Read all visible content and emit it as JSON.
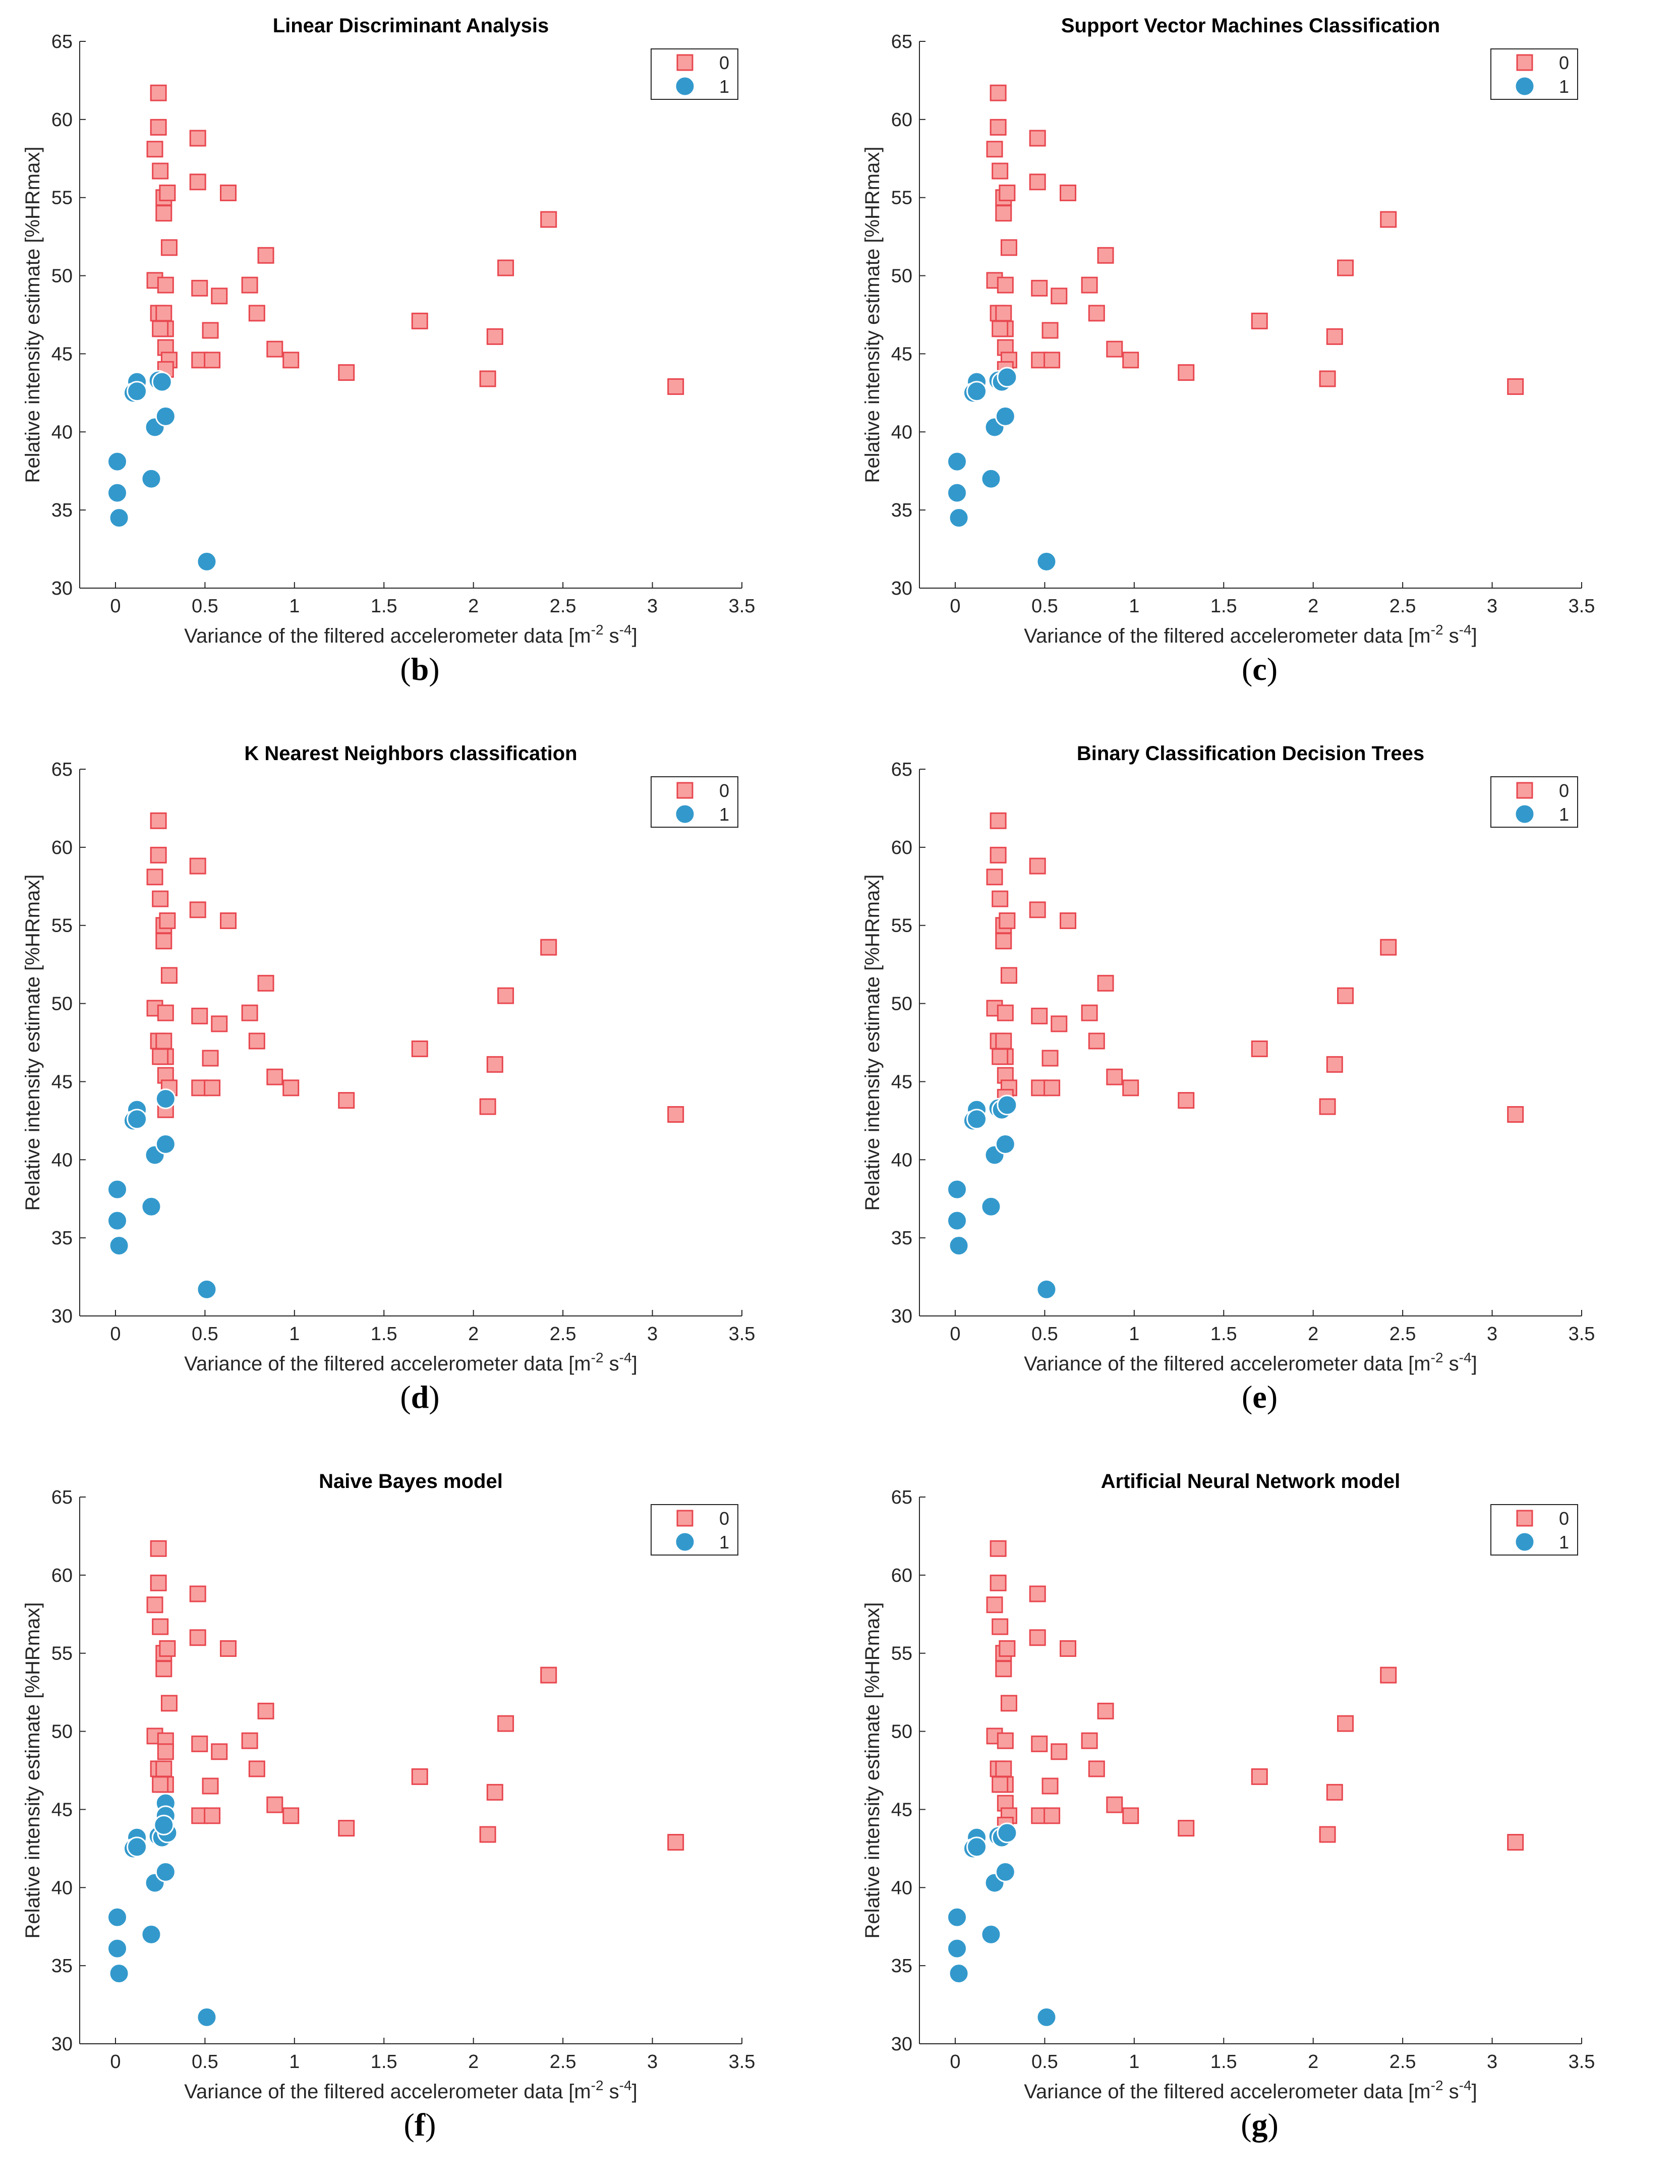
{
  "figure": {
    "panels": [
      {
        "caption_letter": "b"
      },
      {
        "caption_letter": "c"
      },
      {
        "caption_letter": "d"
      },
      {
        "caption_letter": "e"
      },
      {
        "caption_letter": "f"
      },
      {
        "caption_letter": "g"
      }
    ]
  },
  "colors": {
    "class0_fill": "#F8A0A0",
    "class0_stroke": "#E8474F",
    "class1_fill": "#3399CC",
    "class1_stroke": "#FFFFFF",
    "axis": "#262626"
  },
  "chart_data": [
    {
      "type": "scatter",
      "title": "Linear Discriminant Analysis",
      "xlabel": "Variance of the filtered accelerometer data [m",
      "xlabel_sup1": "-2",
      "xlabel_mid": " s",
      "xlabel_sup2": "-4",
      "xlabel_end": "]",
      "ylabel": "Relative intensity estimate [%HRmax]",
      "xlim": [
        -0.2,
        3.5
      ],
      "ylim": [
        30,
        65
      ],
      "xticks": [
        "0",
        "0.5",
        "1",
        "1.5",
        "2",
        "2.5",
        "3",
        "3.5"
      ],
      "yticks": [
        "30",
        "35",
        "40",
        "45",
        "50",
        "55",
        "60",
        "65"
      ],
      "legend": [
        "0",
        "1"
      ],
      "series": [
        {
          "name": "0",
          "marker": "square",
          "x": [
            0.24,
            0.24,
            0.22,
            0.25,
            0.27,
            0.29,
            0.27,
            0.3,
            0.22,
            0.28,
            0.24,
            0.27,
            0.27,
            0.28,
            0.25,
            0.28,
            0.3,
            0.28,
            0.46,
            0.46,
            0.63,
            0.47,
            0.58,
            0.53,
            0.47,
            0.54,
            0.84,
            0.75,
            0.79,
            0.89,
            0.98,
            1.29,
            1.7,
            2.08,
            2.12,
            2.18,
            2.42,
            3.13
          ],
          "y": [
            61.7,
            59.5,
            58.1,
            56.7,
            55.0,
            55.3,
            54.0,
            51.8,
            49.7,
            49.4,
            47.6,
            47.6,
            46.6,
            46.6,
            46.6,
            45.4,
            44.6,
            44.0,
            58.8,
            56.0,
            55.3,
            49.2,
            48.7,
            46.5,
            44.6,
            44.6,
            51.3,
            49.4,
            47.6,
            45.3,
            44.6,
            43.8,
            47.1,
            43.4,
            46.1,
            50.5,
            53.6,
            42.9
          ]
        },
        {
          "name": "1",
          "marker": "circle",
          "x": [
            0.12,
            0.1,
            0.12,
            0.24,
            0.22,
            0.26,
            0.28,
            0.01,
            0.01,
            0.02,
            0.2,
            0.51
          ],
          "y": [
            43.2,
            42.5,
            42.6,
            43.3,
            40.3,
            43.2,
            41.0,
            38.1,
            36.1,
            34.5,
            37.0,
            31.7
          ]
        }
      ]
    },
    {
      "type": "scatter",
      "title": "Support Vector Machines Classification",
      "xlabel": "Variance of the filtered accelerometer data [m",
      "xlabel_sup1": "-2",
      "xlabel_mid": " s",
      "xlabel_sup2": "-4",
      "xlabel_end": "]",
      "ylabel": "Relative intensity estimate [%HRmax]",
      "xlim": [
        -0.2,
        3.5
      ],
      "ylim": [
        30,
        65
      ],
      "xticks": [
        "0",
        "0.5",
        "1",
        "1.5",
        "2",
        "2.5",
        "3",
        "3.5"
      ],
      "yticks": [
        "30",
        "35",
        "40",
        "45",
        "50",
        "55",
        "60",
        "65"
      ],
      "legend": [
        "0",
        "1"
      ],
      "series": [
        {
          "name": "0",
          "marker": "square",
          "x": [
            0.24,
            0.24,
            0.22,
            0.25,
            0.27,
            0.29,
            0.27,
            0.3,
            0.22,
            0.28,
            0.24,
            0.27,
            0.27,
            0.28,
            0.25,
            0.28,
            0.3,
            0.28,
            0.46,
            0.46,
            0.63,
            0.47,
            0.58,
            0.53,
            0.47,
            0.54,
            0.84,
            0.75,
            0.79,
            0.89,
            0.98,
            1.29,
            1.7,
            2.08,
            2.12,
            2.18,
            2.42,
            3.13
          ],
          "y": [
            61.7,
            59.5,
            58.1,
            56.7,
            55.0,
            55.3,
            54.0,
            51.8,
            49.7,
            49.4,
            47.6,
            47.6,
            46.6,
            46.6,
            46.6,
            45.4,
            44.6,
            44.0,
            58.8,
            56.0,
            55.3,
            49.2,
            48.7,
            46.5,
            44.6,
            44.6,
            51.3,
            49.4,
            47.6,
            45.3,
            44.6,
            43.8,
            47.1,
            43.4,
            46.1,
            50.5,
            53.6,
            42.9
          ]
        },
        {
          "name": "1",
          "marker": "circle",
          "x": [
            0.12,
            0.1,
            0.12,
            0.24,
            0.22,
            0.26,
            0.28,
            0.01,
            0.01,
            0.02,
            0.2,
            0.51,
            0.29
          ],
          "y": [
            43.2,
            42.5,
            42.6,
            43.3,
            40.3,
            43.2,
            41.0,
            38.1,
            36.1,
            34.5,
            37.0,
            31.7,
            43.5
          ]
        }
      ]
    },
    {
      "type": "scatter",
      "title": "K Nearest Neighbors classification",
      "xlabel": "Variance of the filtered accelerometer data [m",
      "xlabel_sup1": "-2",
      "xlabel_mid": " s",
      "xlabel_sup2": "-4",
      "xlabel_end": "]",
      "ylabel": "Relative intensity estimate [%HRmax]",
      "xlim": [
        -0.2,
        3.5
      ],
      "ylim": [
        30,
        65
      ],
      "xticks": [
        "0",
        "0.5",
        "1",
        "1.5",
        "2",
        "2.5",
        "3",
        "3.5"
      ],
      "yticks": [
        "30",
        "35",
        "40",
        "45",
        "50",
        "55",
        "60",
        "65"
      ],
      "legend": [
        "0",
        "1"
      ],
      "series": [
        {
          "name": "0",
          "marker": "square",
          "x": [
            0.24,
            0.24,
            0.22,
            0.25,
            0.27,
            0.29,
            0.27,
            0.3,
            0.22,
            0.28,
            0.24,
            0.27,
            0.27,
            0.28,
            0.25,
            0.28,
            0.3,
            0.28,
            0.46,
            0.46,
            0.63,
            0.47,
            0.58,
            0.53,
            0.47,
            0.54,
            0.84,
            0.75,
            0.79,
            0.89,
            0.98,
            1.29,
            1.7,
            2.08,
            2.12,
            2.18,
            2.42,
            3.13
          ],
          "y": [
            61.7,
            59.5,
            58.1,
            56.7,
            55.0,
            55.3,
            54.0,
            51.8,
            49.7,
            49.4,
            47.6,
            47.6,
            46.6,
            46.6,
            46.6,
            45.4,
            44.6,
            43.2,
            58.8,
            56.0,
            55.3,
            49.2,
            48.7,
            46.5,
            44.6,
            44.6,
            51.3,
            49.4,
            47.6,
            45.3,
            44.6,
            43.8,
            47.1,
            43.4,
            46.1,
            50.5,
            53.6,
            42.9
          ]
        },
        {
          "name": "1",
          "marker": "circle",
          "x": [
            0.12,
            0.1,
            0.12,
            0.22,
            0.28,
            0.28,
            0.01,
            0.01,
            0.02,
            0.2,
            0.51
          ],
          "y": [
            43.2,
            42.5,
            42.6,
            40.3,
            43.9,
            41.0,
            38.1,
            36.1,
            34.5,
            37.0,
            31.7
          ]
        }
      ]
    },
    {
      "type": "scatter",
      "title": "Binary Classification Decision Trees",
      "xlabel": "Variance of the filtered accelerometer data [m",
      "xlabel_sup1": "-2",
      "xlabel_mid": " s",
      "xlabel_sup2": "-4",
      "xlabel_end": "]",
      "ylabel": "Relative intensity estimate [%HRmax]",
      "xlim": [
        -0.2,
        3.5
      ],
      "ylim": [
        30,
        65
      ],
      "xticks": [
        "0",
        "0.5",
        "1",
        "1.5",
        "2",
        "2.5",
        "3",
        "3.5"
      ],
      "yticks": [
        "30",
        "35",
        "40",
        "45",
        "50",
        "55",
        "60",
        "65"
      ],
      "legend": [
        "0",
        "1"
      ],
      "series": [
        {
          "name": "0",
          "marker": "square",
          "x": [
            0.24,
            0.24,
            0.22,
            0.25,
            0.27,
            0.29,
            0.27,
            0.3,
            0.22,
            0.28,
            0.24,
            0.27,
            0.27,
            0.28,
            0.25,
            0.28,
            0.3,
            0.28,
            0.46,
            0.46,
            0.63,
            0.47,
            0.58,
            0.53,
            0.47,
            0.54,
            0.84,
            0.75,
            0.79,
            0.89,
            0.98,
            1.29,
            1.7,
            2.08,
            2.12,
            2.18,
            2.42,
            3.13
          ],
          "y": [
            61.7,
            59.5,
            58.1,
            56.7,
            55.0,
            55.3,
            54.0,
            51.8,
            49.7,
            49.4,
            47.6,
            47.6,
            46.6,
            46.6,
            46.6,
            45.4,
            44.6,
            44.0,
            58.8,
            56.0,
            55.3,
            49.2,
            48.7,
            46.5,
            44.6,
            44.6,
            51.3,
            49.4,
            47.6,
            45.3,
            44.6,
            43.8,
            47.1,
            43.4,
            46.1,
            50.5,
            53.6,
            42.9
          ]
        },
        {
          "name": "1",
          "marker": "circle",
          "x": [
            0.12,
            0.1,
            0.12,
            0.24,
            0.22,
            0.26,
            0.28,
            0.01,
            0.01,
            0.02,
            0.2,
            0.51,
            0.29
          ],
          "y": [
            43.2,
            42.5,
            42.6,
            43.3,
            40.3,
            43.2,
            41.0,
            38.1,
            36.1,
            34.5,
            37.0,
            31.7,
            43.5
          ]
        }
      ]
    },
    {
      "type": "scatter",
      "title": "Naive Bayes model",
      "xlabel": "Variance of the filtered accelerometer data [m",
      "xlabel_sup1": "-2",
      "xlabel_mid": " s",
      "xlabel_sup2": "-4",
      "xlabel_end": "]",
      "ylabel": "Relative intensity estimate [%HRmax]",
      "xlim": [
        -0.2,
        3.5
      ],
      "ylim": [
        30,
        65
      ],
      "xticks": [
        "0",
        "0.5",
        "1",
        "1.5",
        "2",
        "2.5",
        "3",
        "3.5"
      ],
      "yticks": [
        "30",
        "35",
        "40",
        "45",
        "50",
        "55",
        "60",
        "65"
      ],
      "legend": [
        "0",
        "1"
      ],
      "series": [
        {
          "name": "0",
          "marker": "square",
          "x": [
            0.24,
            0.24,
            0.22,
            0.25,
            0.27,
            0.29,
            0.27,
            0.3,
            0.22,
            0.28,
            0.24,
            0.27,
            0.27,
            0.28,
            0.25,
            0.28,
            0.46,
            0.46,
            0.63,
            0.47,
            0.58,
            0.53,
            0.47,
            0.54,
            0.84,
            0.75,
            0.79,
            0.89,
            0.98,
            1.29,
            1.7,
            2.08,
            2.12,
            2.18,
            2.42,
            3.13
          ],
          "y": [
            61.7,
            59.5,
            58.1,
            56.7,
            55.0,
            55.3,
            54.0,
            51.8,
            49.7,
            49.4,
            47.6,
            47.6,
            46.6,
            46.6,
            46.6,
            48.7,
            58.8,
            56.0,
            55.3,
            49.2,
            48.7,
            46.5,
            44.6,
            44.6,
            51.3,
            49.4,
            47.6,
            45.3,
            44.6,
            43.8,
            47.1,
            43.4,
            46.1,
            50.5,
            53.6,
            42.9
          ]
        },
        {
          "name": "1",
          "marker": "circle",
          "x": [
            0.12,
            0.1,
            0.12,
            0.24,
            0.22,
            0.26,
            0.28,
            0.28,
            0.29,
            0.27,
            0.28,
            0.01,
            0.01,
            0.02,
            0.2,
            0.51
          ],
          "y": [
            43.2,
            42.5,
            42.6,
            43.3,
            40.3,
            43.2,
            45.4,
            44.6,
            43.5,
            44.0,
            41.0,
            38.1,
            36.1,
            34.5,
            37.0,
            31.7
          ]
        }
      ]
    },
    {
      "type": "scatter",
      "title": "Artificial Neural Network model",
      "xlabel": "Variance of the filtered accelerometer data [m",
      "xlabel_sup1": "-2",
      "xlabel_mid": " s",
      "xlabel_sup2": "-4",
      "xlabel_end": "]",
      "ylabel": "Relative intensity estimate [%HRmax]",
      "xlim": [
        -0.2,
        3.5
      ],
      "ylim": [
        30,
        65
      ],
      "xticks": [
        "0",
        "0.5",
        "1",
        "1.5",
        "2",
        "2.5",
        "3",
        "3.5"
      ],
      "yticks": [
        "30",
        "35",
        "40",
        "45",
        "50",
        "55",
        "60",
        "65"
      ],
      "legend": [
        "0",
        "1"
      ],
      "series": [
        {
          "name": "0",
          "marker": "square",
          "x": [
            0.24,
            0.24,
            0.22,
            0.25,
            0.27,
            0.29,
            0.27,
            0.3,
            0.22,
            0.28,
            0.24,
            0.27,
            0.27,
            0.28,
            0.25,
            0.28,
            0.3,
            0.28,
            0.46,
            0.46,
            0.63,
            0.47,
            0.58,
            0.53,
            0.47,
            0.54,
            0.84,
            0.75,
            0.79,
            0.89,
            0.98,
            1.29,
            1.7,
            2.08,
            2.12,
            2.18,
            2.42,
            3.13
          ],
          "y": [
            61.7,
            59.5,
            58.1,
            56.7,
            55.0,
            55.3,
            54.0,
            51.8,
            49.7,
            49.4,
            47.6,
            47.6,
            46.6,
            46.6,
            46.6,
            45.4,
            44.6,
            44.0,
            58.8,
            56.0,
            55.3,
            49.2,
            48.7,
            46.5,
            44.6,
            44.6,
            51.3,
            49.4,
            47.6,
            45.3,
            44.6,
            43.8,
            47.1,
            43.4,
            46.1,
            50.5,
            53.6,
            42.9
          ]
        },
        {
          "name": "1",
          "marker": "circle",
          "x": [
            0.12,
            0.1,
            0.12,
            0.24,
            0.22,
            0.26,
            0.28,
            0.01,
            0.01,
            0.02,
            0.2,
            0.51,
            0.29
          ],
          "y": [
            43.2,
            42.5,
            42.6,
            43.3,
            40.3,
            43.2,
            41.0,
            38.1,
            36.1,
            34.5,
            37.0,
            31.7,
            43.5
          ]
        }
      ]
    }
  ]
}
